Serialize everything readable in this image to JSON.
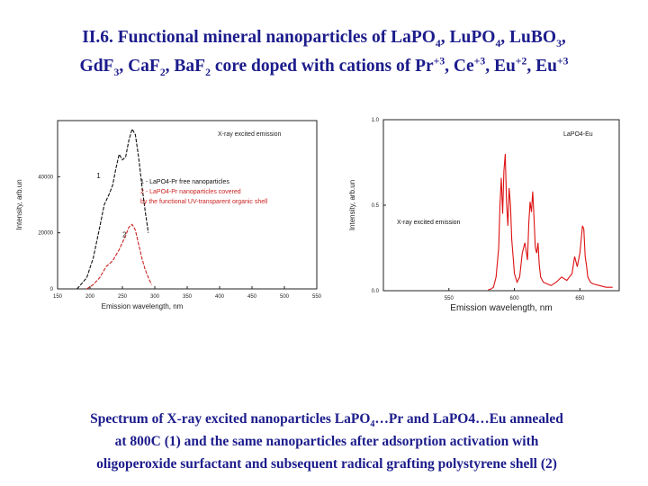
{
  "slide": {
    "title": {
      "prefix": "II.6. Functional mineral nanoparticles of ",
      "segments": [
        {
          "text": "LaPO",
          "sub": "4",
          "sep": ", "
        },
        {
          "text": "LuPO",
          "sub": "4",
          "sep": ", "
        },
        {
          "text": "LuBO",
          "sub": "3",
          "sep": ","
        },
        {
          "text": "GdF",
          "sub": "3",
          "sep": ", "
        },
        {
          "text": "CaF",
          "sub": "2",
          "sep": ", "
        },
        {
          "text": "BaF",
          "sub": "2",
          "sep": " core doped with cations of "
        },
        {
          "text": "Pr",
          "sup": "+3",
          "sep": ", "
        },
        {
          "text": "Ce",
          "sup": "+3",
          "sep": ", "
        },
        {
          "text": "Eu",
          "sup": "+2",
          "sep": ", "
        },
        {
          "text": "Eu",
          "sup": "+3",
          "sep": ""
        }
      ]
    },
    "caption": {
      "line1_a": "Spectrum of X-ray excited nanoparticles LaPO",
      "line1_sub": "4",
      "line1_b": "…Pr and LaPO4…Eu annealed",
      "line2": "at 800C (1) and the same nanoparticles after adsorption activation with",
      "line3": "oligoperoxide surfactant and subsequent radical grafting polystyrene shell (2)"
    }
  },
  "chart_data": [
    {
      "type": "line",
      "title": "X-ray excited emission",
      "xlabel": "Emission wavelength, nm",
      "ylabel": "Intensity, arb.un",
      "xlim": [
        150,
        550
      ],
      "ylim": [
        0,
        60000
      ],
      "x_ticks": [
        150,
        200,
        250,
        300,
        350,
        400,
        450,
        500,
        550
      ],
      "y_ticks": [
        0,
        20000,
        40000
      ],
      "legend": [
        {
          "label": "1 - LaPO4-Pr free nanoparticles",
          "color": "#111111"
        },
        {
          "label": "2 - LaPO4-Pr nanoparticles covered",
          "color": "#cc2222"
        },
        {
          "label": "by the functional UV-transparent organic shell",
          "color": "#cc2222"
        }
      ],
      "annotations": [
        {
          "text": "1",
          "x": 210,
          "y": 39500
        },
        {
          "text": "2",
          "x": 250,
          "y": 18500
        }
      ],
      "series": [
        {
          "name": "1",
          "color": "#111111",
          "dashed": true,
          "x": [
            180,
            195,
            205,
            215,
            222,
            230,
            235,
            240,
            245,
            250,
            255,
            260,
            265,
            270,
            275,
            280,
            285,
            290
          ],
          "y": [
            0,
            4000,
            11000,
            22000,
            30000,
            34000,
            37000,
            43000,
            48000,
            46000,
            47000,
            53000,
            57000,
            55000,
            47000,
            37000,
            28000,
            20000
          ]
        },
        {
          "name": "2",
          "color": "#cc2222",
          "dashed": true,
          "x": [
            195,
            205,
            215,
            225,
            235,
            245,
            255,
            260,
            265,
            270,
            275,
            280,
            285,
            290,
            295
          ],
          "y": [
            0,
            1500,
            4000,
            8000,
            10000,
            14000,
            19000,
            22000,
            23000,
            21000,
            16000,
            11000,
            7000,
            4000,
            1500
          ]
        }
      ]
    },
    {
      "type": "line",
      "title": "LaPO4-Eu",
      "xlabel": "Emission wavelength, nm",
      "ylabel": "Intensity, arb.un",
      "xlim": [
        500,
        680
      ],
      "ylim": [
        0,
        1
      ],
      "x_ticks": [
        550,
        600,
        650
      ],
      "y_ticks": [
        0,
        0.5,
        1.0
      ],
      "legend": [
        {
          "label": "X-ray excited emission",
          "color": "#111111"
        }
      ],
      "series": [
        {
          "name": "LaPO4-Eu",
          "color": "#dd1111",
          "x": [
            580,
            582,
            584,
            586,
            588,
            589,
            590,
            591,
            592,
            593,
            594,
            595,
            596,
            597,
            598,
            599,
            600,
            602,
            604,
            606,
            608,
            610,
            611,
            612,
            613,
            614,
            615,
            616,
            617,
            618,
            619,
            620,
            622,
            625,
            628,
            632,
            636,
            640,
            644,
            646,
            648,
            650,
            651,
            652,
            653,
            654,
            655,
            656,
            658,
            660,
            665,
            670,
            675
          ],
          "y": [
            0.005,
            0.01,
            0.02,
            0.08,
            0.25,
            0.5,
            0.66,
            0.45,
            0.7,
            0.8,
            0.52,
            0.38,
            0.6,
            0.5,
            0.3,
            0.2,
            0.1,
            0.05,
            0.08,
            0.22,
            0.28,
            0.18,
            0.4,
            0.52,
            0.46,
            0.58,
            0.42,
            0.25,
            0.22,
            0.28,
            0.15,
            0.08,
            0.05,
            0.04,
            0.03,
            0.05,
            0.08,
            0.06,
            0.1,
            0.2,
            0.14,
            0.22,
            0.3,
            0.38,
            0.36,
            0.2,
            0.15,
            0.08,
            0.05,
            0.04,
            0.03,
            0.02,
            0.02
          ]
        }
      ]
    }
  ]
}
